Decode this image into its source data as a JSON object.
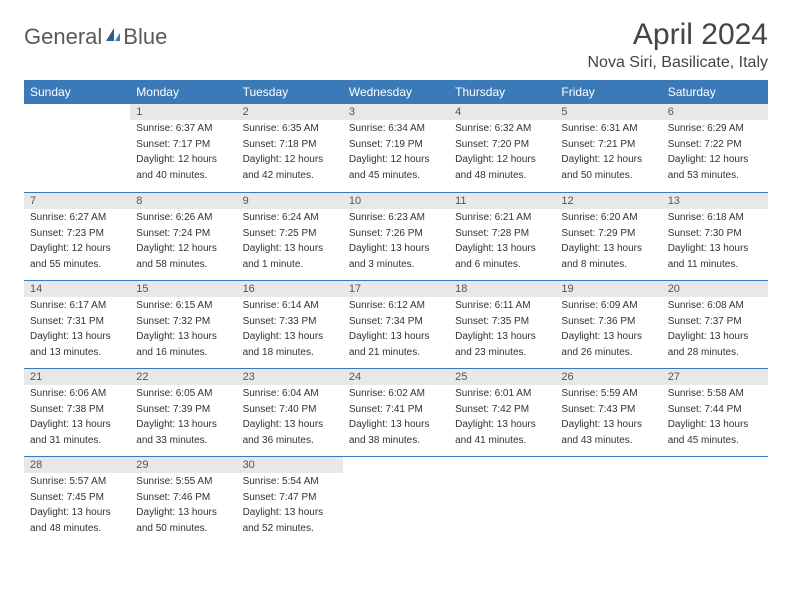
{
  "logo": {
    "text1": "General",
    "text2": "Blue"
  },
  "title": "April 2024",
  "location": "Nova Siri, Basilicate, Italy",
  "colors": {
    "header_bg": "#3a7ab8",
    "header_text": "#ffffff",
    "day_bg": "#e8e8e8",
    "border": "#3a7ab8",
    "text": "#333333",
    "title_color": "#444444"
  },
  "weekdays": [
    "Sunday",
    "Monday",
    "Tuesday",
    "Wednesday",
    "Thursday",
    "Friday",
    "Saturday"
  ],
  "grid": [
    [
      null,
      {
        "n": "1",
        "sr": "6:37 AM",
        "ss": "7:17 PM",
        "d1": "12 hours",
        "d2": "and 40 minutes."
      },
      {
        "n": "2",
        "sr": "6:35 AM",
        "ss": "7:18 PM",
        "d1": "12 hours",
        "d2": "and 42 minutes."
      },
      {
        "n": "3",
        "sr": "6:34 AM",
        "ss": "7:19 PM",
        "d1": "12 hours",
        "d2": "and 45 minutes."
      },
      {
        "n": "4",
        "sr": "6:32 AM",
        "ss": "7:20 PM",
        "d1": "12 hours",
        "d2": "and 48 minutes."
      },
      {
        "n": "5",
        "sr": "6:31 AM",
        "ss": "7:21 PM",
        "d1": "12 hours",
        "d2": "and 50 minutes."
      },
      {
        "n": "6",
        "sr": "6:29 AM",
        "ss": "7:22 PM",
        "d1": "12 hours",
        "d2": "and 53 minutes."
      }
    ],
    [
      {
        "n": "7",
        "sr": "6:27 AM",
        "ss": "7:23 PM",
        "d1": "12 hours",
        "d2": "and 55 minutes."
      },
      {
        "n": "8",
        "sr": "6:26 AM",
        "ss": "7:24 PM",
        "d1": "12 hours",
        "d2": "and 58 minutes."
      },
      {
        "n": "9",
        "sr": "6:24 AM",
        "ss": "7:25 PM",
        "d1": "13 hours",
        "d2": "and 1 minute."
      },
      {
        "n": "10",
        "sr": "6:23 AM",
        "ss": "7:26 PM",
        "d1": "13 hours",
        "d2": "and 3 minutes."
      },
      {
        "n": "11",
        "sr": "6:21 AM",
        "ss": "7:28 PM",
        "d1": "13 hours",
        "d2": "and 6 minutes."
      },
      {
        "n": "12",
        "sr": "6:20 AM",
        "ss": "7:29 PM",
        "d1": "13 hours",
        "d2": "and 8 minutes."
      },
      {
        "n": "13",
        "sr": "6:18 AM",
        "ss": "7:30 PM",
        "d1": "13 hours",
        "d2": "and 11 minutes."
      }
    ],
    [
      {
        "n": "14",
        "sr": "6:17 AM",
        "ss": "7:31 PM",
        "d1": "13 hours",
        "d2": "and 13 minutes."
      },
      {
        "n": "15",
        "sr": "6:15 AM",
        "ss": "7:32 PM",
        "d1": "13 hours",
        "d2": "and 16 minutes."
      },
      {
        "n": "16",
        "sr": "6:14 AM",
        "ss": "7:33 PM",
        "d1": "13 hours",
        "d2": "and 18 minutes."
      },
      {
        "n": "17",
        "sr": "6:12 AM",
        "ss": "7:34 PM",
        "d1": "13 hours",
        "d2": "and 21 minutes."
      },
      {
        "n": "18",
        "sr": "6:11 AM",
        "ss": "7:35 PM",
        "d1": "13 hours",
        "d2": "and 23 minutes."
      },
      {
        "n": "19",
        "sr": "6:09 AM",
        "ss": "7:36 PM",
        "d1": "13 hours",
        "d2": "and 26 minutes."
      },
      {
        "n": "20",
        "sr": "6:08 AM",
        "ss": "7:37 PM",
        "d1": "13 hours",
        "d2": "and 28 minutes."
      }
    ],
    [
      {
        "n": "21",
        "sr": "6:06 AM",
        "ss": "7:38 PM",
        "d1": "13 hours",
        "d2": "and 31 minutes."
      },
      {
        "n": "22",
        "sr": "6:05 AM",
        "ss": "7:39 PM",
        "d1": "13 hours",
        "d2": "and 33 minutes."
      },
      {
        "n": "23",
        "sr": "6:04 AM",
        "ss": "7:40 PM",
        "d1": "13 hours",
        "d2": "and 36 minutes."
      },
      {
        "n": "24",
        "sr": "6:02 AM",
        "ss": "7:41 PM",
        "d1": "13 hours",
        "d2": "and 38 minutes."
      },
      {
        "n": "25",
        "sr": "6:01 AM",
        "ss": "7:42 PM",
        "d1": "13 hours",
        "d2": "and 41 minutes."
      },
      {
        "n": "26",
        "sr": "5:59 AM",
        "ss": "7:43 PM",
        "d1": "13 hours",
        "d2": "and 43 minutes."
      },
      {
        "n": "27",
        "sr": "5:58 AM",
        "ss": "7:44 PM",
        "d1": "13 hours",
        "d2": "and 45 minutes."
      }
    ],
    [
      {
        "n": "28",
        "sr": "5:57 AM",
        "ss": "7:45 PM",
        "d1": "13 hours",
        "d2": "and 48 minutes."
      },
      {
        "n": "29",
        "sr": "5:55 AM",
        "ss": "7:46 PM",
        "d1": "13 hours",
        "d2": "and 50 minutes."
      },
      {
        "n": "30",
        "sr": "5:54 AM",
        "ss": "7:47 PM",
        "d1": "13 hours",
        "d2": "and 52 minutes."
      },
      null,
      null,
      null,
      null
    ]
  ],
  "labels": {
    "sunrise": "Sunrise:",
    "sunset": "Sunset:",
    "daylight": "Daylight:"
  }
}
